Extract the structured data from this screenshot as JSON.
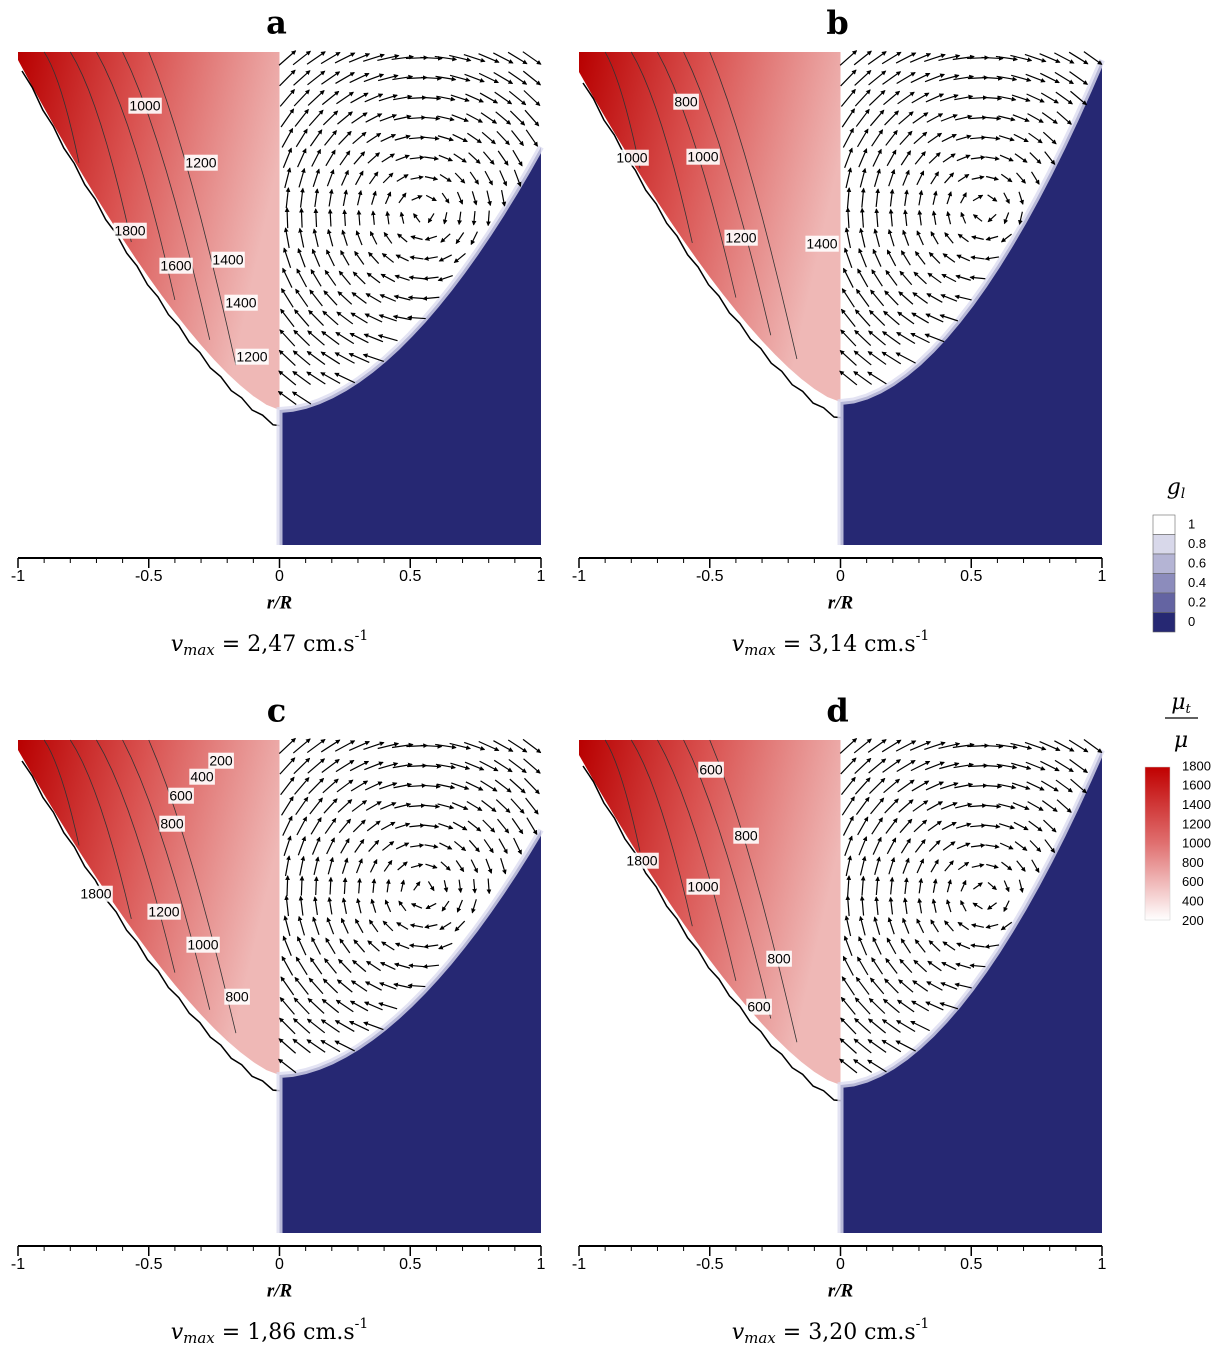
{
  "panels": [
    {
      "label": "a",
      "xticks": [
        -1,
        -0.5,
        0,
        0.5,
        1
      ],
      "xlabel": "r/R",
      "vmax": {
        "symbol": "v",
        "subscript": "max",
        "text": " = 2,47 cm.s",
        "superscript": "-1"
      },
      "contour_labels": [
        "1000",
        "1200",
        "1800",
        "1600",
        "1400",
        "1400",
        "1200"
      ]
    },
    {
      "label": "b",
      "xticks": [
        -1,
        -0.5,
        0,
        0.5,
        1
      ],
      "xlabel": "r/R",
      "vmax": {
        "symbol": "v",
        "subscript": "max",
        "text": " = 3,14 cm.s",
        "superscript": "-1"
      },
      "contour_labels": [
        "800",
        "1000",
        "1000",
        "1200",
        "1400"
      ]
    },
    {
      "label": "c",
      "xticks": [
        -1,
        -0.5,
        0,
        0.5,
        1
      ],
      "xlabel": "r/R",
      "vmax": {
        "symbol": "v",
        "subscript": "max",
        "text": " = 1,86 cm.s",
        "superscript": "-1"
      },
      "contour_labels": [
        "200",
        "400",
        "600",
        "800",
        "1800",
        "1200",
        "1000",
        "800"
      ]
    },
    {
      "label": "d",
      "xticks": [
        -1,
        -0.5,
        0,
        0.5,
        1
      ],
      "xlabel": "r/R",
      "vmax": {
        "symbol": "v",
        "subscript": "max",
        "text": " = 3,20 cm.s",
        "superscript": "-1"
      },
      "contour_labels": [
        "600",
        "800",
        "1800",
        "1000",
        "800",
        "600"
      ]
    }
  ],
  "legend_gl": {
    "symbol": "g",
    "subscript": "l",
    "labels": [
      "1",
      "0.8",
      "0.6",
      "0.4",
      "0.2",
      "0"
    ]
  },
  "legend_mu": {
    "numerator": "μ",
    "numerator_subscript": "t",
    "denominator": "μ",
    "labels": [
      "1800",
      "1600",
      "1400",
      "1200",
      "1000",
      "800",
      "600",
      "400",
      "200"
    ]
  }
}
